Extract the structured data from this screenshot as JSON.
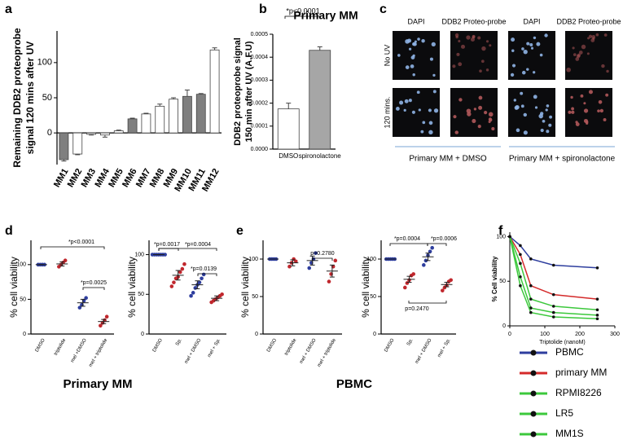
{
  "panel_letters": [
    "a",
    "b",
    "c",
    "d",
    "e",
    "f"
  ],
  "group_labels": [
    "Primary MM",
    "PBMC"
  ],
  "panel_c": {
    "columns": [
      "DAPI",
      "DDB2 Proteo-probe",
      "DAPI",
      "DDB2 Proteo-probe"
    ],
    "rows": [
      "No UV",
      "120 mins."
    ],
    "groups": [
      "Primary MM + DMSO",
      "Primary MM + spironolactone"
    ]
  },
  "chart_data": [
    {
      "type": "bar",
      "ylabel": [
        "Remaining DDB2 proteoprobe",
        "signal  120 mins  after UV"
      ],
      "categories": [
        "MM1",
        "MM2",
        "MM3",
        "MM4",
        "MM5",
        "MM6",
        "MM7",
        "MM8",
        "MM9",
        "MM10",
        "MM11",
        "MM12"
      ],
      "values": [
        -38,
        -30,
        -2,
        -3,
        3,
        20,
        27,
        38,
        48,
        52,
        55,
        118
      ],
      "errors": [
        2,
        1,
        1,
        3,
        1,
        1,
        1,
        3,
        2,
        9,
        1,
        3
      ],
      "colors": [
        "#7f7f7f",
        "#ffffff",
        "#ffffff",
        "#ffffff",
        "#ffffff",
        "#7f7f7f",
        "#ffffff",
        "#ffffff",
        "#ffffff",
        "#7f7f7f",
        "#7f7f7f",
        "#ffffff"
      ],
      "ylim": [
        -45,
        145
      ],
      "yticks": [
        0,
        50,
        100
      ]
    },
    {
      "type": "bar",
      "title": "Primary MM",
      "ylabel": [
        "DDB2 proteoprobe signal",
        "150 min after UV (A.F.U)"
      ],
      "categories": [
        "DMSO",
        "spironolactone"
      ],
      "values": [
        0.000175,
        0.00043
      ],
      "errors": [
        2.5e-05,
        1.5e-05
      ],
      "colors": [
        "#ffffff",
        "#a6a6a6"
      ],
      "ylim": [
        0,
        0.0005
      ],
      "yticks": [
        {
          "value": 0,
          "label": "0.0000"
        },
        {
          "value": 0.0001,
          "label": "0.0001"
        },
        {
          "value": 0.0002,
          "label": "0.0002"
        },
        {
          "value": 0.0003,
          "label": "0.0003"
        },
        {
          "value": 0.0004,
          "label": "0.0004"
        },
        {
          "value": 0.0005,
          "label": "0.0005"
        }
      ],
      "annotations": [
        "*p<0.0001"
      ]
    },
    {
      "type": "dot",
      "ylabel": "% cell viability",
      "categories": [
        "DMSO",
        "triptolide",
        "mel +DMSO",
        "mel + triptolide"
      ],
      "points": [
        [
          100,
          100,
          100,
          100
        ],
        [
          97,
          100,
          103,
          106
        ],
        [
          38,
          42,
          48,
          52
        ],
        [
          12,
          16,
          20,
          25
        ]
      ],
      "means": [
        100,
        101,
        45,
        18
      ],
      "errors": [
        0,
        3,
        5,
        3
      ],
      "colors": [
        "#2e3e9e",
        "#c0272d",
        "#2e3e9e",
        "#c0272d"
      ],
      "ylim": [
        0,
        135
      ],
      "yticks": [
        0,
        50,
        100
      ],
      "annotations": [
        "*p<0.0001",
        "*p=0.0025"
      ]
    },
    {
      "type": "dot",
      "ylabel": "% cell viability",
      "categories": [
        "DMSO",
        "Sp.",
        "mel + DMSO",
        "mel + Sp."
      ],
      "points": [
        [
          100,
          100,
          100,
          100,
          100,
          100,
          100
        ],
        [
          60,
          65,
          70,
          72,
          78,
          82,
          88
        ],
        [
          48,
          52,
          58,
          62,
          65,
          70,
          75
        ],
        [
          40,
          42,
          44,
          46,
          48,
          50
        ]
      ],
      "means": [
        100,
        74,
        62,
        45
      ],
      "errors": [
        0,
        6,
        5,
        3
      ],
      "colors": [
        "#2e3e9e",
        "#c0272d",
        "#2e3e9e",
        "#c0272d"
      ],
      "ylim": [
        0,
        118
      ],
      "yticks": [
        0,
        50,
        100
      ],
      "annotations": [
        "*p=0.0017",
        "*p=0.0004",
        "*p=0.0139"
      ]
    },
    {
      "type": "dot",
      "ylabel": "% cell viability",
      "categories": [
        "DMSO",
        "triptolide",
        "mel + DMSO",
        "mel + triptolide"
      ],
      "points": [
        [
          100,
          100,
          100,
          100
        ],
        [
          90,
          95,
          100,
          97
        ],
        [
          88,
          95,
          100,
          108
        ],
        [
          70,
          80,
          90,
          98
        ]
      ],
      "means": [
        100,
        95,
        98,
        84
      ],
      "errors": [
        0,
        4,
        6,
        8
      ],
      "colors": [
        "#2e3e9e",
        "#c0272d",
        "#2e3e9e",
        "#c0272d"
      ],
      "ylim": [
        0,
        125
      ],
      "yticks": [
        0,
        50,
        100
      ],
      "annotations": [
        "p=0.2780"
      ]
    },
    {
      "type": "dot",
      "ylabel": "% cell viability",
      "categories": [
        "DMSO",
        "Sp.",
        "mel + DMSO",
        "mel + Sp."
      ],
      "points": [
        [
          100,
          100,
          100,
          100,
          100
        ],
        [
          62,
          68,
          72,
          78,
          80
        ],
        [
          92,
          98,
          105,
          110,
          115
        ],
        [
          58,
          62,
          65,
          70,
          72
        ]
      ],
      "means": [
        100,
        73,
        103,
        66
      ],
      "errors": [
        0,
        4,
        5,
        3
      ],
      "colors": [
        "#2e3e9e",
        "#c0272d",
        "#2e3e9e",
        "#c0272d"
      ],
      "ylim": [
        0,
        125
      ],
      "yticks": [
        0,
        50,
        100
      ],
      "annotations": [
        "*p=0.0004",
        "*p=0.0006",
        "p=0.2470"
      ]
    },
    {
      "type": "line",
      "ylabel": "% Cell viability",
      "xlabel": "Triptolide (nanoM)",
      "x": [
        0,
        30,
        60,
        125,
        250
      ],
      "xlim": [
        0,
        300
      ],
      "xticks": [
        0,
        100,
        200,
        300
      ],
      "ylim": [
        0,
        105
      ],
      "yticks": [
        0,
        50,
        100
      ],
      "series": [
        {
          "name": "PBMC",
          "color": "#2e3e9e",
          "values": [
            100,
            90,
            75,
            68,
            65
          ]
        },
        {
          "name": "primary MM",
          "color": "#d42a2a",
          "values": [
            100,
            80,
            45,
            35,
            30
          ]
        },
        {
          "name": "RPMI8226",
          "color": "#3cc83c",
          "values": [
            100,
            55,
            20,
            15,
            12
          ]
        },
        {
          "name": "LR5",
          "color": "#3cc83c",
          "values": [
            100,
            70,
            30,
            22,
            18
          ]
        },
        {
          "name": "MM1S",
          "color": "#3cc83c",
          "values": [
            100,
            45,
            15,
            10,
            8
          ]
        }
      ]
    }
  ]
}
